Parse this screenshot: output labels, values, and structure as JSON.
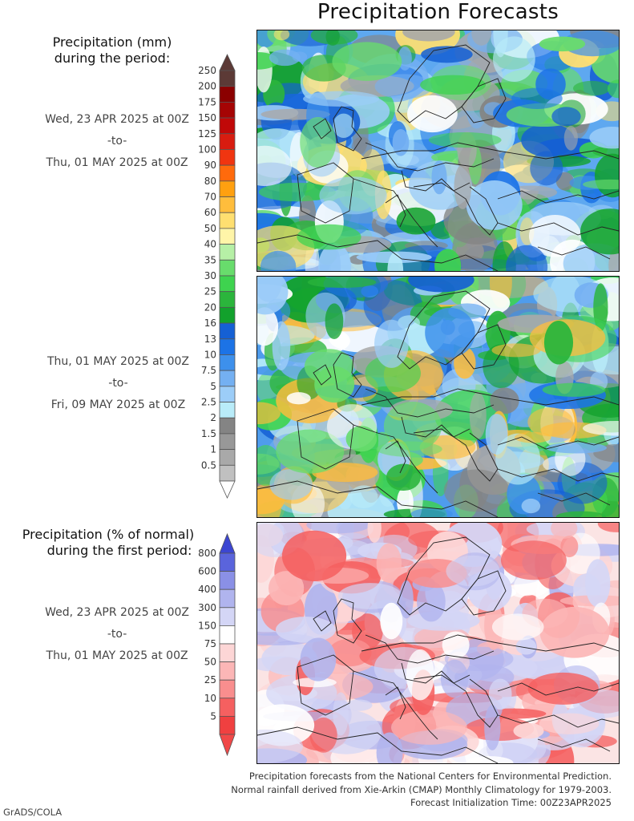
{
  "title": "Precipitation Forecasts",
  "legend_mm": {
    "heading_line1": "Precipitation (mm)",
    "heading_line2": "during the period:",
    "levels": [
      "250",
      "200",
      "175",
      "150",
      "125",
      "100",
      "90",
      "80",
      "70",
      "60",
      "50",
      "40",
      "35",
      "30",
      "25",
      "20",
      "16",
      "13",
      "10",
      "7.5",
      "5",
      "2.5",
      "2",
      "1.5",
      "1",
      "0.5"
    ],
    "colors": [
      "#5c3a36",
      "#8b0000",
      "#a50404",
      "#c00808",
      "#d81c10",
      "#f03510",
      "#ff6a0c",
      "#ffa010",
      "#ffbd3c",
      "#ffdf70",
      "#fff5a8",
      "#b6f0a6",
      "#68dc6c",
      "#3ed34f",
      "#2bb53c",
      "#12a12c",
      "#1560d4",
      "#1c73e6",
      "#3d90ec",
      "#74b0f2",
      "#9ccdf8",
      "#b9ecf9",
      "#848484",
      "#989898",
      "#a9a9a9",
      "#c0c0c0"
    ],
    "arrow_top_color": "#5c3a36",
    "arrow_bottom_color": "#ffffff"
  },
  "period1": {
    "start": "Wed, 23 APR 2025 at 00Z",
    "sep": "-to-",
    "end": "Thu, 01 MAY 2025 at 00Z"
  },
  "period2": {
    "start": "Thu, 01 MAY 2025 at 00Z",
    "sep": "-to-",
    "end": "Fri, 09 MAY 2025 at 00Z"
  },
  "legend_pct": {
    "heading_line1": "Precipitation (% of normal)",
    "heading_line2": "during the first period:",
    "levels": [
      "800",
      "600",
      "400",
      "300",
      "150",
      "75",
      "50",
      "25",
      "10",
      "5"
    ],
    "colors": [
      "#5a64dc",
      "#8a90e6",
      "#b0b4ee",
      "#d4d6f6",
      "#ffffff",
      "#fdd6d6",
      "#fcb6b6",
      "#f98e8e",
      "#f56060",
      "#f04040"
    ],
    "arrow_top_color": "#3c46d2",
    "arrow_bottom_color": "#f04848"
  },
  "period3": {
    "start": "Wed, 23 APR 2025 at 00Z",
    "sep": "-to-",
    "end": "Thu, 01 MAY 2025 at 00Z"
  },
  "maps": [
    {
      "name": "precip-map-period1"
    },
    {
      "name": "precip-map-period2"
    },
    {
      "name": "percent-normal-map"
    }
  ],
  "footer": {
    "line1": "Precipitation forecasts from the National Centers for Environmental Prediction.",
    "line2": "Normal rainfall derived from Xie-Arkin (CMAP) Monthly Climatology for 1979-2003.",
    "line3": "Forecast Initialization Time: 00Z23APR2025"
  },
  "credit": "GrADS/COLA"
}
